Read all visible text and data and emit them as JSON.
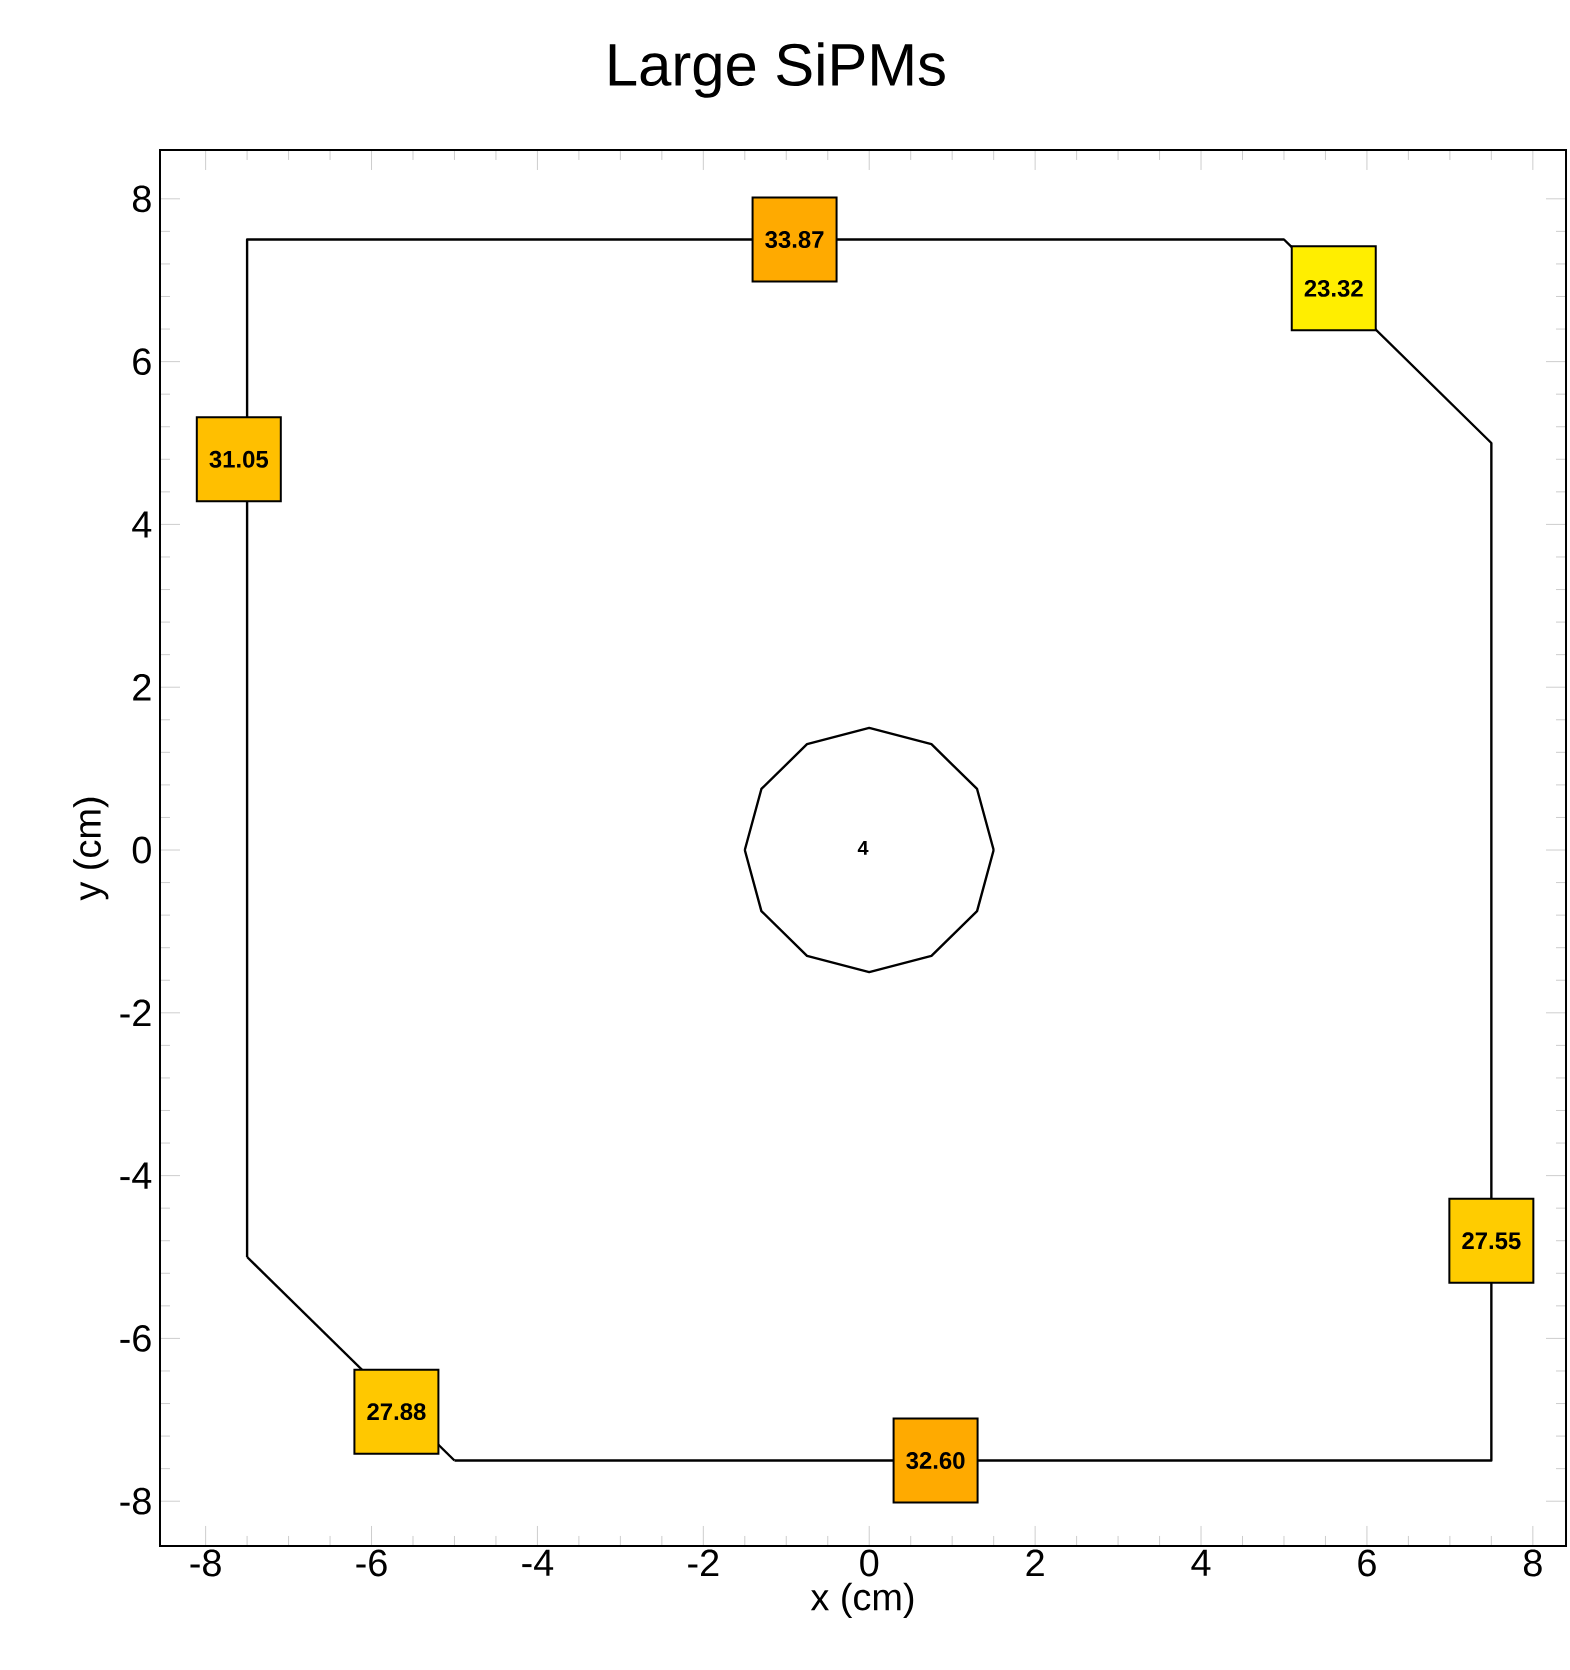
{
  "chart_data": {
    "type": "scatter",
    "title": "Large SiPMs",
    "xlabel": "x (cm)",
    "ylabel": "y (cm)",
    "xlim": [
      -8.55,
      8.4
    ],
    "ylim": [
      -8.55,
      8.6
    ],
    "xticks": [
      -8,
      -6,
      -4,
      -2,
      0,
      2,
      4,
      6,
      8
    ],
    "yticks": [
      -8,
      -6,
      -4,
      -2,
      0,
      2,
      4,
      6,
      8
    ],
    "series": [
      {
        "type": "line",
        "color": "#000000",
        "marker": "none",
        "x": [
          -7.5,
          -7.5,
          5,
          7.5,
          7.5,
          -5
        ],
        "values": [
          -5,
          7.5,
          7.5,
          5,
          -7.5,
          -7.5
        ]
      },
      {
        "type": "line",
        "color": "#000000",
        "marker": "none",
        "x": [
          -5,
          -7.5
        ],
        "values": [
          -7.5,
          -5
        ]
      },
      {
        "type": "line",
        "color": "#000000",
        "marker": "none",
        "x": [
          1.5,
          1.3,
          0.75,
          0,
          -0.75,
          -1.3,
          -1.5
        ],
        "values": [
          0,
          0.75,
          1.3,
          1.5,
          1.3,
          0.75,
          0
        ]
      },
      {
        "type": "line",
        "color": "#000000",
        "marker": "none",
        "x": [
          -1.5,
          -1.3,
          -0.75,
          0,
          0.75,
          1.3,
          1.5
        ],
        "values": [
          0,
          -0.75,
          -1.3,
          -1.5,
          -1.3,
          -0.75,
          0
        ]
      },
      {
        "marker": "square",
        "x": [
          -0.9,
          5.6,
          -7.6,
          7.5,
          -5.7,
          0.8
        ],
        "values": [
          7.5,
          6.9,
          4.8,
          -4.8,
          -6.9,
          -7.5
        ],
        "colors": [
          "#ffaa00",
          "#ffee00",
          "#ffbf00",
          "#ffcc00",
          "#ffc800",
          "#ffaa00"
        ]
      }
    ],
    "annotations": [
      {
        "text": "33.87",
        "x": -0.9,
        "y": 7.5
      },
      {
        "text": "23.32",
        "x": 5.6,
        "y": 6.9
      },
      {
        "text": "31.05",
        "x": -7.6,
        "y": 4.8
      },
      {
        "text": "27.55",
        "x": 7.5,
        "y": -4.8
      },
      {
        "text": "27.88",
        "x": -5.7,
        "y": -6.9
      },
      {
        "text": "32.60",
        "x": 0.8,
        "y": -7.5
      },
      "4"
    ]
  }
}
